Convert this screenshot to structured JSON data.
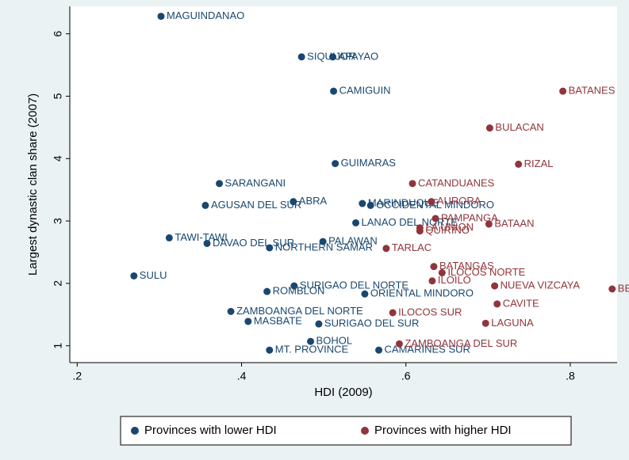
{
  "chart_data": {
    "type": "scatter",
    "xlabel": "HDI (2009)",
    "ylabel": "Largest dynastic clan share (2007)",
    "xlim": [
      0.191,
      0.857
    ],
    "ylim": [
      0.73,
      6.44
    ],
    "xticks": [
      {
        "value": 0.2,
        "label": ".2"
      },
      {
        "value": 0.4,
        "label": ".4"
      },
      {
        "value": 0.6,
        "label": ".6"
      },
      {
        "value": 0.8,
        "label": ".8"
      }
    ],
    "yticks": [
      1,
      2,
      3,
      4,
      5,
      6
    ],
    "grid": false,
    "legend_position": "bottom",
    "series": [
      {
        "name": "Provinces with lower HDI",
        "color": "#1a476f",
        "x": [
          0.302,
          0.473,
          0.511,
          0.512,
          0.514,
          0.373,
          0.356,
          0.463,
          0.547,
          0.557,
          0.539,
          0.312,
          0.358,
          0.499,
          0.269,
          0.387,
          0.408,
          0.431,
          0.464,
          0.484,
          0.434,
          0.494,
          0.55,
          0.567,
          0.434
        ],
        "values": [
          6.28,
          5.63,
          5.63,
          5.08,
          3.92,
          3.6,
          3.25,
          3.31,
          3.28,
          3.25,
          2.97,
          2.73,
          2.64,
          2.67,
          2.12,
          1.55,
          1.39,
          1.87,
          1.96,
          1.07,
          0.93,
          1.35,
          1.83,
          0.93,
          2.57
        ],
        "labels": [
          "MAGUINDANAO",
          "SIQUIJOR",
          "APAYAO",
          "CAMIGUIN",
          "GUIMARAS",
          "SARANGANI",
          "AGUSAN DEL SUR",
          "ABRA",
          "MARINDUQUE",
          "OCCIDENTAL MINDORO",
          "LANAO DEL NORTE",
          "TAWI-TAWI",
          "DAVAO DEL SUR",
          "PALAWAN",
          "SULU",
          "ZAMBOANGA DEL NORTE",
          "MASBATE",
          "ROMBLON",
          "SURIGAO DEL NORTE",
          "BOHOL",
          "MT. PROVINCE",
          "SURIGAO DEL SUR",
          "ORIENTAL MINDORO",
          "CAMARINES SUR",
          "NORTHERN SAMAR"
        ]
      },
      {
        "name": "Provinces with higher HDI",
        "color": "#90353b",
        "x": [
          0.791,
          0.702,
          0.737,
          0.608,
          0.631,
          0.636,
          0.701,
          0.617,
          0.617,
          0.576,
          0.634,
          0.708,
          0.644,
          0.632,
          0.851,
          0.711,
          0.697,
          0.584,
          0.592
        ],
        "values": [
          5.08,
          4.49,
          3.91,
          3.6,
          3.31,
          3.04,
          2.95,
          2.89,
          2.84,
          2.56,
          2.27,
          1.96,
          2.17,
          2.04,
          1.91,
          1.67,
          1.36,
          1.53,
          1.03
        ],
        "labels": [
          "BATANES",
          "BULACAN",
          "RIZAL",
          "CATANDUANES",
          "AURORA",
          "PAMPANGA",
          "BATAAN",
          "LA UNION",
          "QUIRINO",
          "TARLAC",
          "BATANGAS",
          "NUEVA VIZCAYA",
          "ILOCOS NORTE",
          "ILOILO",
          "BENGUET",
          "CAVITE",
          "LAGUNA",
          "ILOCOS SUR",
          "ZAMBOANGA DEL SUR"
        ]
      }
    ]
  }
}
